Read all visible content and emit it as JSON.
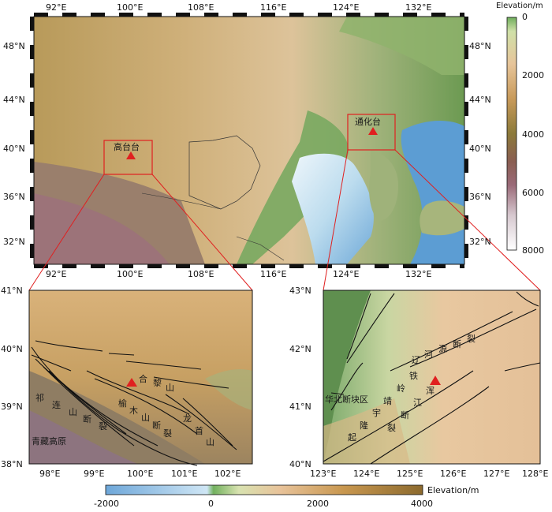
{
  "overview": {
    "top_lon_ticks": [
      "92°E",
      "100°E",
      "108°E",
      "116°E",
      "124°E",
      "132°E"
    ],
    "bottom_lon_ticks": [
      "92°E",
      "100°E",
      "108°E",
      "116°E",
      "124°E",
      "132°E"
    ],
    "left_lat_ticks": [
      "48°N",
      "44°N",
      "40°N",
      "36°N",
      "32°N"
    ],
    "right_lat_ticks": [
      "48°N",
      "44°N",
      "40°N",
      "36°N",
      "32°N"
    ],
    "stations": [
      {
        "name": "高台台"
      },
      {
        "name": "通化台"
      }
    ]
  },
  "elevation_colorbar": {
    "title": "Elevation/m",
    "ticks": [
      "0",
      "2000",
      "4000",
      "6000",
      "8000"
    ]
  },
  "inset_left": {
    "lon_ticks": [
      "98°E",
      "99°E",
      "100°E",
      "101°E",
      "102°E"
    ],
    "lat_ticks": [
      "41°N",
      "40°N",
      "39°N",
      "38°N"
    ],
    "labels": {
      "hexi_1": "合",
      "hexi_2": "黎",
      "hexi_3": "山",
      "qilian_1": "祁",
      "qilian_2": "连",
      "qilian_3": "山",
      "qilian_4": "断",
      "qilian_5": "裂",
      "yumu_1": "榆",
      "yumu_2": "木",
      "yumu_3": "山",
      "yumu_4": "断",
      "yumu_5": "裂",
      "longshou_1": "龙",
      "longshou_2": "首",
      "longshou_3": "山",
      "plateau": "青藏高原"
    }
  },
  "inset_right": {
    "lon_ticks": [
      "123°E",
      "124°E",
      "125°E",
      "126°E",
      "127°E",
      "128°E"
    ],
    "lat_ticks": [
      "43°N",
      "42°N",
      "41°N",
      "40°N"
    ],
    "labels": {
      "liaohe_1": "辽",
      "liaohe_2": "河",
      "liaohe_3": "源",
      "liaohe_4": "断",
      "liaohe_5": "裂",
      "tie": "铁",
      "ling": "岭",
      "jing": "靖",
      "yu": "宇",
      "long": "隆",
      "qi": "起",
      "hun": "浑",
      "jiang": "江",
      "duan": "断",
      "lie": "裂",
      "block": "华北断块区"
    }
  },
  "bottom_colorbar": {
    "title": "Elevation/m",
    "ticks": [
      "-2000",
      "0",
      "2000",
      "4000"
    ]
  },
  "colors": {
    "station_marker": "#e02020",
    "box_outline": "#e02020",
    "fault_line": "#111111"
  }
}
